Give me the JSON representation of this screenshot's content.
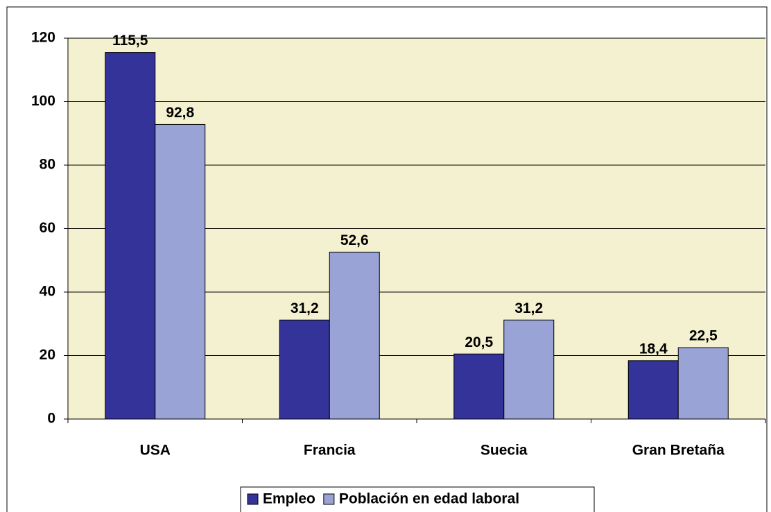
{
  "chart_data": {
    "type": "bar",
    "categories": [
      "USA",
      "Francia",
      "Suecia",
      "Gran Bretaña"
    ],
    "series": [
      {
        "name": "Empleo",
        "color": "#333399",
        "values": [
          115.5,
          31.2,
          20.5,
          18.4
        ],
        "value_labels": [
          "115,5",
          "31,2",
          "20,5",
          "18,4"
        ]
      },
      {
        "name": "Población en edad laboral",
        "color": "#99a3d6",
        "values": [
          92.8,
          52.6,
          31.2,
          22.5
        ],
        "value_labels": [
          "92,8",
          "52,6",
          "31,2",
          "22,5"
        ]
      }
    ],
    "ylim": [
      0,
      120
    ],
    "yticks": [
      0,
      20,
      40,
      60,
      80,
      100,
      120
    ],
    "grid": true,
    "legend": "bottom"
  }
}
